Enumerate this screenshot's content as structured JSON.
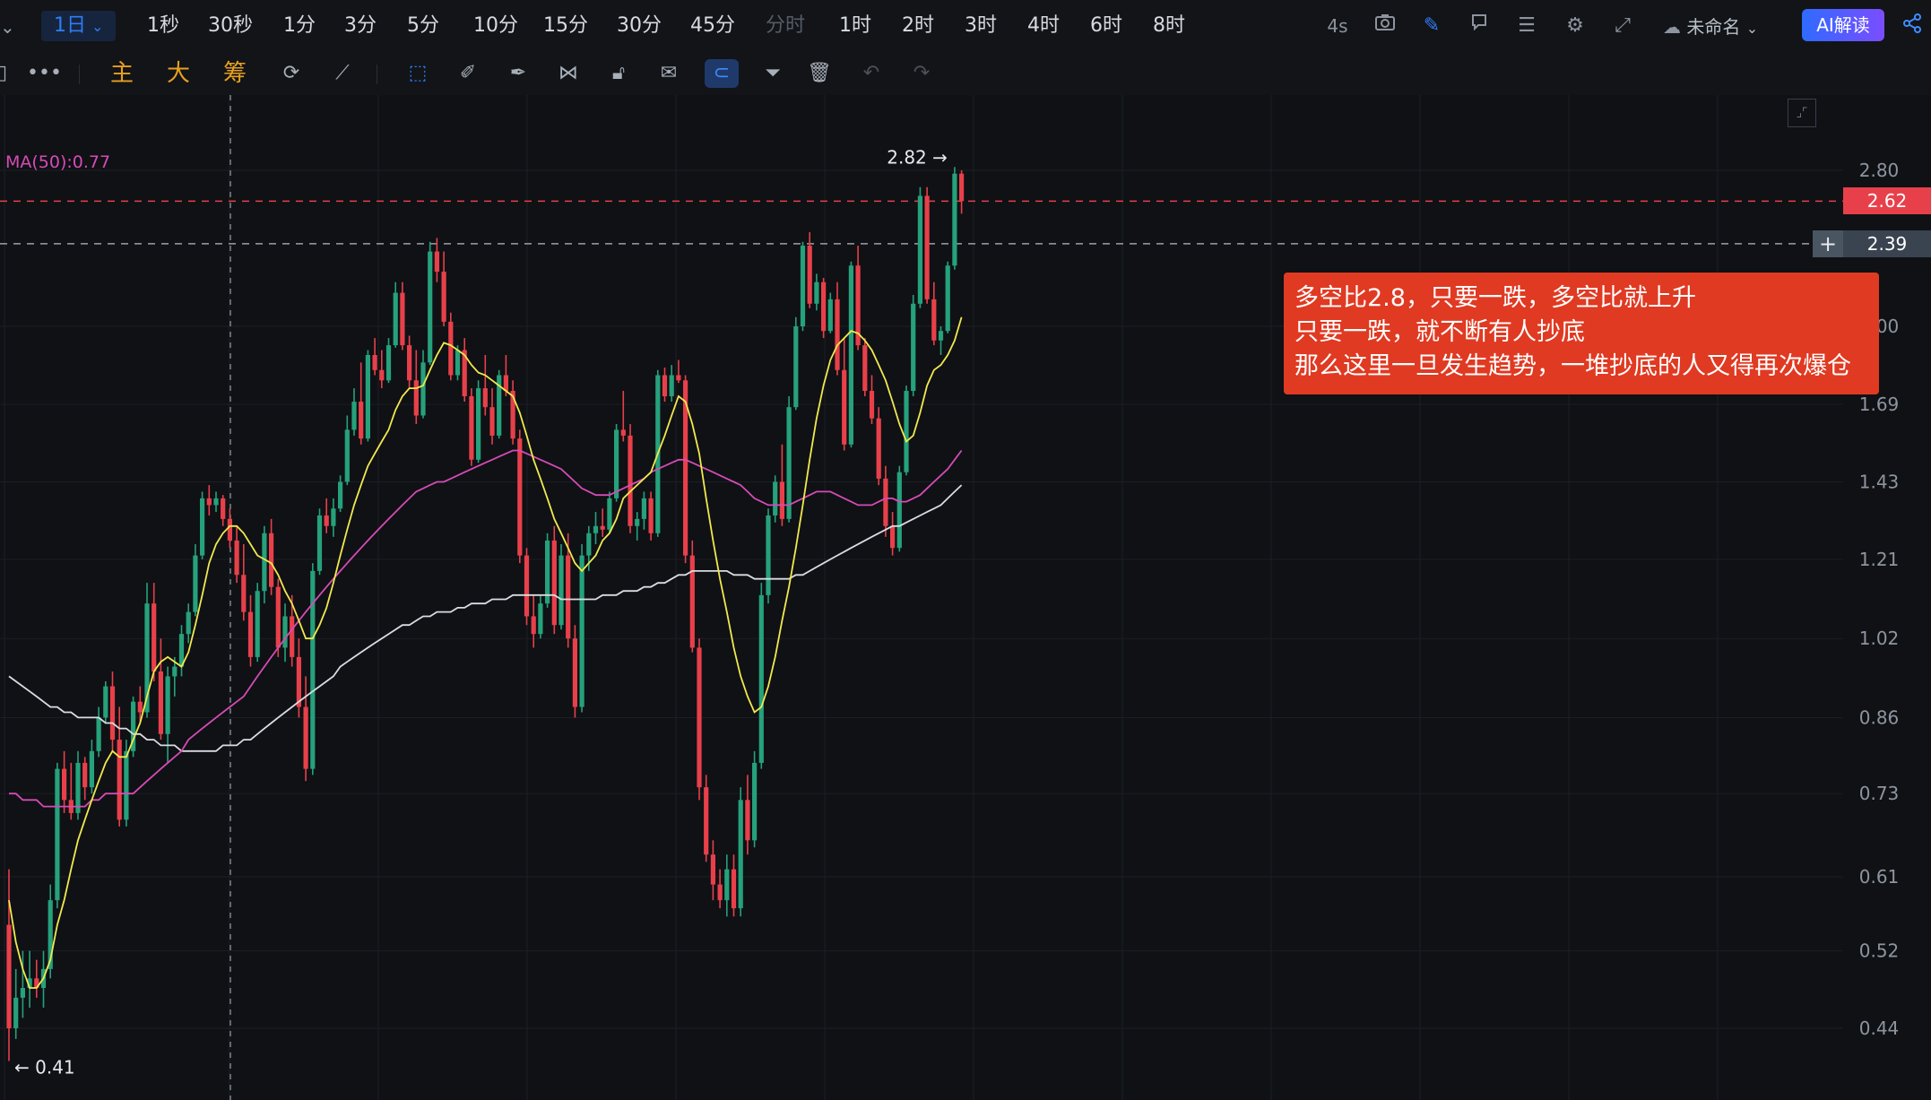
{
  "toolbar": {
    "timeframes": [
      {
        "label": "1日",
        "state": "active"
      },
      {
        "label": "1秒"
      },
      {
        "label": "30秒"
      },
      {
        "label": "1分"
      },
      {
        "label": "3分"
      },
      {
        "label": "5分"
      },
      {
        "label": "10分"
      },
      {
        "label": "15分"
      },
      {
        "label": "30分"
      },
      {
        "label": "45分"
      },
      {
        "label": "分时",
        "state": "disabled"
      },
      {
        "label": "1时"
      },
      {
        "label": "2时"
      },
      {
        "label": "3时"
      },
      {
        "label": "4时"
      },
      {
        "label": "6时"
      },
      {
        "label": "8时"
      }
    ],
    "refresh": "4s",
    "workspace": "未命名",
    "ai_button": "AI解读",
    "drawing_labels": [
      "主",
      "大",
      "筹"
    ],
    "icons": [
      "more-icon",
      "main-indicator",
      "large-order",
      "chips",
      "replace-icon",
      "line-tool-icon",
      "select-icon",
      "ruler-icon",
      "brush-icon",
      "pattern-icon",
      "unlock-icon",
      "note-icon",
      "magnet-icon",
      "filter-icon",
      "trash-icon",
      "undo-icon",
      "redo-icon"
    ]
  },
  "colors": {
    "up": "#26a17b",
    "down": "#e8404a",
    "ma_fast": "#f2e94e",
    "ma_50": "#d64bb5",
    "ma_long": "#d9dde3",
    "accent": "#2f7cf6",
    "callout_bg": "#e03a22"
  },
  "indicator_label": "MA(50):0.77",
  "annotation": {
    "lines": [
      "多空比2.8，只要一跌，多空比就上升",
      "只要一跌，就不断有人抄底",
      "那么这里一旦发生趋势，一堆抄底的人又得再次爆仓"
    ]
  },
  "chart_data": {
    "type": "candlestick",
    "scale": "log",
    "y_ticks": [
      2.8,
      2.0,
      1.69,
      1.43,
      1.21,
      1.02,
      0.86,
      0.73,
      0.61,
      0.52,
      0.44
    ],
    "last_price": 2.62,
    "crosshair_price": 2.39,
    "high_label": "2.82",
    "low_label": "0.41",
    "ohlc": [
      [
        0.55,
        0.62,
        0.41,
        0.44
      ],
      [
        0.44,
        0.5,
        0.43,
        0.47
      ],
      [
        0.47,
        0.52,
        0.45,
        0.48
      ],
      [
        0.48,
        0.52,
        0.46,
        0.49
      ],
      [
        0.49,
        0.51,
        0.47,
        0.48
      ],
      [
        0.48,
        0.52,
        0.46,
        0.5
      ],
      [
        0.5,
        0.6,
        0.49,
        0.58
      ],
      [
        0.58,
        0.78,
        0.57,
        0.77
      ],
      [
        0.77,
        0.8,
        0.7,
        0.72
      ],
      [
        0.72,
        0.78,
        0.69,
        0.7
      ],
      [
        0.7,
        0.8,
        0.69,
        0.78
      ],
      [
        0.78,
        0.79,
        0.72,
        0.74
      ],
      [
        0.74,
        0.82,
        0.73,
        0.8
      ],
      [
        0.8,
        0.88,
        0.79,
        0.86
      ],
      [
        0.86,
        0.93,
        0.85,
        0.92
      ],
      [
        0.92,
        0.95,
        0.8,
        0.82
      ],
      [
        0.82,
        0.88,
        0.68,
        0.69
      ],
      [
        0.69,
        0.82,
        0.68,
        0.8
      ],
      [
        0.8,
        0.9,
        0.79,
        0.89
      ],
      [
        0.89,
        0.92,
        0.85,
        0.87
      ],
      [
        0.87,
        1.15,
        0.86,
        1.1
      ],
      [
        1.1,
        1.15,
        0.93,
        0.95
      ],
      [
        0.95,
        1.02,
        0.82,
        0.83
      ],
      [
        0.83,
        0.96,
        0.78,
        0.94
      ],
      [
        0.94,
        0.98,
        0.9,
        0.96
      ],
      [
        0.96,
        1.05,
        0.94,
        1.03
      ],
      [
        1.03,
        1.1,
        1.01,
        1.08
      ],
      [
        1.08,
        1.25,
        1.07,
        1.22
      ],
      [
        1.22,
        1.4,
        1.21,
        1.38
      ],
      [
        1.38,
        1.42,
        1.33,
        1.36
      ],
      [
        1.36,
        1.4,
        1.34,
        1.38
      ],
      [
        1.38,
        1.39,
        1.3,
        1.32
      ],
      [
        1.32,
        1.35,
        1.24,
        1.26
      ],
      [
        1.26,
        1.3,
        1.15,
        1.17
      ],
      [
        1.17,
        1.25,
        1.06,
        1.08
      ],
      [
        1.08,
        1.12,
        0.96,
        0.98
      ],
      [
        0.98,
        1.15,
        0.97,
        1.13
      ],
      [
        1.13,
        1.3,
        1.1,
        1.28
      ],
      [
        1.28,
        1.32,
        1.12,
        1.14
      ],
      [
        1.14,
        1.16,
        0.98,
        1.0
      ],
      [
        1.0,
        1.1,
        0.97,
        1.07
      ],
      [
        1.07,
        1.12,
        0.96,
        0.98
      ],
      [
        0.98,
        1.02,
        0.86,
        0.88
      ],
      [
        0.88,
        0.94,
        0.75,
        0.77
      ],
      [
        0.77,
        1.2,
        0.76,
        1.18
      ],
      [
        1.18,
        1.35,
        1.17,
        1.33
      ],
      [
        1.33,
        1.38,
        1.28,
        1.3
      ],
      [
        1.3,
        1.38,
        1.27,
        1.35
      ],
      [
        1.35,
        1.45,
        1.34,
        1.43
      ],
      [
        1.43,
        1.65,
        1.42,
        1.6
      ],
      [
        1.6,
        1.75,
        1.58,
        1.7
      ],
      [
        1.7,
        1.85,
        1.55,
        1.57
      ],
      [
        1.57,
        1.9,
        1.56,
        1.88
      ],
      [
        1.88,
        1.95,
        1.8,
        1.82
      ],
      [
        1.82,
        1.9,
        1.75,
        1.78
      ],
      [
        1.78,
        1.95,
        1.77,
        1.92
      ],
      [
        1.92,
        2.2,
        1.91,
        2.15
      ],
      [
        2.15,
        2.2,
        1.9,
        1.92
      ],
      [
        1.92,
        1.96,
        1.75,
        1.78
      ],
      [
        1.78,
        1.9,
        1.62,
        1.65
      ],
      [
        1.65,
        1.9,
        1.64,
        1.85
      ],
      [
        1.85,
        2.4,
        1.84,
        2.35
      ],
      [
        2.35,
        2.42,
        2.2,
        2.25
      ],
      [
        2.25,
        2.35,
        2.0,
        2.02
      ],
      [
        2.02,
        2.06,
        1.78,
        1.8
      ],
      [
        1.8,
        1.92,
        1.78,
        1.9
      ],
      [
        1.9,
        1.95,
        1.7,
        1.72
      ],
      [
        1.72,
        1.75,
        1.48,
        1.5
      ],
      [
        1.5,
        1.78,
        1.49,
        1.75
      ],
      [
        1.75,
        1.88,
        1.65,
        1.68
      ],
      [
        1.68,
        1.75,
        1.55,
        1.58
      ],
      [
        1.58,
        1.82,
        1.57,
        1.8
      ],
      [
        1.8,
        1.88,
        1.72,
        1.74
      ],
      [
        1.74,
        1.78,
        1.55,
        1.57
      ],
      [
        1.57,
        1.6,
        1.2,
        1.22
      ],
      [
        1.22,
        1.24,
        1.05,
        1.07
      ],
      [
        1.07,
        1.12,
        1.0,
        1.03
      ],
      [
        1.03,
        1.12,
        1.02,
        1.1
      ],
      [
        1.1,
        1.28,
        1.09,
        1.26
      ],
      [
        1.26,
        1.3,
        1.03,
        1.05
      ],
      [
        1.05,
        1.25,
        1.04,
        1.22
      ],
      [
        1.22,
        1.28,
        1.0,
        1.02
      ],
      [
        1.02,
        1.05,
        0.86,
        0.88
      ],
      [
        0.88,
        1.25,
        0.87,
        1.22
      ],
      [
        1.22,
        1.3,
        1.18,
        1.28
      ],
      [
        1.28,
        1.34,
        1.25,
        1.3
      ],
      [
        1.3,
        1.35,
        1.27,
        1.29
      ],
      [
        1.29,
        1.4,
        1.28,
        1.38
      ],
      [
        1.38,
        1.62,
        1.37,
        1.6
      ],
      [
        1.6,
        1.74,
        1.56,
        1.58
      ],
      [
        1.58,
        1.62,
        1.28,
        1.3
      ],
      [
        1.3,
        1.34,
        1.26,
        1.32
      ],
      [
        1.32,
        1.4,
        1.29,
        1.38
      ],
      [
        1.38,
        1.4,
        1.26,
        1.28
      ],
      [
        1.28,
        1.82,
        1.27,
        1.8
      ],
      [
        1.8,
        1.83,
        1.7,
        1.72
      ],
      [
        1.72,
        1.84,
        1.7,
        1.8
      ],
      [
        1.8,
        1.86,
        1.77,
        1.78
      ],
      [
        1.78,
        1.8,
        1.2,
        1.22
      ],
      [
        1.22,
        1.26,
        0.99,
        1.0
      ],
      [
        1.0,
        1.02,
        0.72,
        0.74
      ],
      [
        0.74,
        0.76,
        0.63,
        0.64
      ],
      [
        0.64,
        0.66,
        0.58,
        0.6
      ],
      [
        0.6,
        0.62,
        0.57,
        0.58
      ],
      [
        0.58,
        0.64,
        0.56,
        0.62
      ],
      [
        0.62,
        0.64,
        0.56,
        0.57
      ],
      [
        0.57,
        0.74,
        0.56,
        0.72
      ],
      [
        0.72,
        0.76,
        0.64,
        0.66
      ],
      [
        0.66,
        0.8,
        0.65,
        0.78
      ],
      [
        0.78,
        1.15,
        0.77,
        1.12
      ],
      [
        1.12,
        1.35,
        1.1,
        1.33
      ],
      [
        1.33,
        1.45,
        1.31,
        1.43
      ],
      [
        1.43,
        1.55,
        1.3,
        1.32
      ],
      [
        1.32,
        1.72,
        1.31,
        1.68
      ],
      [
        1.68,
        2.04,
        1.67,
        2.0
      ],
      [
        2.0,
        2.4,
        1.98,
        2.38
      ],
      [
        2.38,
        2.45,
        2.08,
        2.1
      ],
      [
        2.1,
        2.24,
        2.07,
        2.2
      ],
      [
        2.2,
        2.22,
        1.95,
        1.98
      ],
      [
        1.98,
        2.15,
        1.97,
        2.12
      ],
      [
        2.12,
        2.2,
        1.8,
        1.82
      ],
      [
        1.82,
        1.95,
        1.53,
        1.55
      ],
      [
        1.55,
        2.3,
        1.54,
        2.28
      ],
      [
        2.28,
        2.38,
        1.9,
        1.92
      ],
      [
        1.92,
        1.95,
        1.72,
        1.74
      ],
      [
        1.74,
        1.8,
        1.62,
        1.64
      ],
      [
        1.64,
        1.68,
        1.42,
        1.44
      ],
      [
        1.44,
        1.48,
        1.27,
        1.3
      ],
      [
        1.3,
        1.34,
        1.22,
        1.24
      ],
      [
        1.24,
        1.48,
        1.23,
        1.46
      ],
      [
        1.46,
        1.76,
        1.45,
        1.74
      ],
      [
        1.74,
        2.14,
        1.72,
        2.1
      ],
      [
        2.1,
        2.7,
        2.08,
        2.65
      ],
      [
        2.65,
        2.7,
        2.1,
        2.12
      ],
      [
        2.12,
        2.2,
        1.92,
        1.94
      ],
      [
        1.94,
        2.0,
        1.88,
        1.98
      ],
      [
        1.98,
        2.3,
        1.97,
        2.28
      ],
      [
        2.28,
        2.82,
        2.26,
        2.78
      ],
      [
        2.78,
        2.8,
        2.55,
        2.62
      ]
    ],
    "ma_fast": [
      0.58,
      0.53,
      0.5,
      0.48,
      0.48,
      0.49,
      0.51,
      0.55,
      0.58,
      0.62,
      0.66,
      0.69,
      0.72,
      0.75,
      0.78,
      0.8,
      0.79,
      0.79,
      0.82,
      0.85,
      0.9,
      0.95,
      0.97,
      0.98,
      0.97,
      0.96,
      0.99,
      1.05,
      1.12,
      1.2,
      1.25,
      1.28,
      1.3,
      1.3,
      1.28,
      1.25,
      1.22,
      1.21,
      1.2,
      1.17,
      1.13,
      1.1,
      1.06,
      1.02,
      1.02,
      1.05,
      1.09,
      1.15,
      1.22,
      1.29,
      1.36,
      1.42,
      1.48,
      1.52,
      1.56,
      1.6,
      1.67,
      1.72,
      1.75,
      1.75,
      1.76,
      1.82,
      1.88,
      1.93,
      1.92,
      1.9,
      1.88,
      1.84,
      1.81,
      1.8,
      1.78,
      1.76,
      1.74,
      1.72,
      1.66,
      1.58,
      1.5,
      1.44,
      1.38,
      1.32,
      1.28,
      1.24,
      1.2,
      1.18,
      1.2,
      1.22,
      1.26,
      1.28,
      1.32,
      1.38,
      1.4,
      1.42,
      1.44,
      1.46,
      1.52,
      1.58,
      1.65,
      1.72,
      1.7,
      1.62,
      1.52,
      1.38,
      1.26,
      1.16,
      1.08,
      1.0,
      0.94,
      0.9,
      0.87,
      0.88,
      0.92,
      0.98,
      1.06,
      1.14,
      1.24,
      1.36,
      1.5,
      1.64,
      1.76,
      1.86,
      1.92,
      1.95,
      1.98,
      1.97,
      1.94,
      1.9,
      1.84,
      1.78,
      1.7,
      1.62,
      1.56,
      1.58,
      1.66,
      1.76,
      1.82,
      1.84,
      1.88,
      1.94,
      2.04
    ],
    "ma_50": [
      0.73,
      0.73,
      0.72,
      0.72,
      0.72,
      0.71,
      0.71,
      0.71,
      0.71,
      0.71,
      0.71,
      0.71,
      0.72,
      0.72,
      0.73,
      0.73,
      0.73,
      0.73,
      0.73,
      0.74,
      0.75,
      0.76,
      0.77,
      0.78,
      0.79,
      0.8,
      0.82,
      0.83,
      0.84,
      0.85,
      0.86,
      0.87,
      0.88,
      0.89,
      0.9,
      0.92,
      0.94,
      0.96,
      0.98,
      1.0,
      1.02,
      1.04,
      1.06,
      1.08,
      1.1,
      1.12,
      1.14,
      1.16,
      1.18,
      1.2,
      1.22,
      1.24,
      1.26,
      1.28,
      1.3,
      1.32,
      1.34,
      1.36,
      1.38,
      1.4,
      1.41,
      1.42,
      1.43,
      1.43,
      1.44,
      1.45,
      1.46,
      1.47,
      1.48,
      1.49,
      1.5,
      1.51,
      1.52,
      1.53,
      1.53,
      1.52,
      1.51,
      1.5,
      1.49,
      1.48,
      1.47,
      1.45,
      1.43,
      1.41,
      1.4,
      1.39,
      1.39,
      1.39,
      1.4,
      1.41,
      1.42,
      1.43,
      1.44,
      1.46,
      1.47,
      1.48,
      1.49,
      1.5,
      1.5,
      1.49,
      1.48,
      1.47,
      1.46,
      1.45,
      1.44,
      1.43,
      1.42,
      1.4,
      1.38,
      1.37,
      1.36,
      1.36,
      1.36,
      1.36,
      1.37,
      1.38,
      1.39,
      1.4,
      1.4,
      1.4,
      1.39,
      1.38,
      1.37,
      1.36,
      1.36,
      1.36,
      1.37,
      1.38,
      1.38,
      1.37,
      1.37,
      1.38,
      1.39,
      1.41,
      1.43,
      1.45,
      1.47,
      1.5,
      1.53
    ],
    "ma_long": [
      0.94,
      0.93,
      0.92,
      0.91,
      0.9,
      0.89,
      0.88,
      0.88,
      0.87,
      0.87,
      0.86,
      0.86,
      0.86,
      0.86,
      0.85,
      0.85,
      0.84,
      0.84,
      0.83,
      0.83,
      0.82,
      0.82,
      0.81,
      0.81,
      0.81,
      0.8,
      0.8,
      0.8,
      0.8,
      0.8,
      0.8,
      0.81,
      0.81,
      0.81,
      0.82,
      0.82,
      0.83,
      0.84,
      0.85,
      0.86,
      0.87,
      0.88,
      0.89,
      0.9,
      0.91,
      0.92,
      0.93,
      0.94,
      0.96,
      0.97,
      0.98,
      0.99,
      1.0,
      1.01,
      1.02,
      1.03,
      1.04,
      1.05,
      1.05,
      1.06,
      1.07,
      1.07,
      1.08,
      1.08,
      1.08,
      1.09,
      1.09,
      1.1,
      1.1,
      1.1,
      1.11,
      1.11,
      1.11,
      1.12,
      1.12,
      1.12,
      1.12,
      1.12,
      1.12,
      1.12,
      1.11,
      1.11,
      1.11,
      1.11,
      1.11,
      1.11,
      1.12,
      1.12,
      1.12,
      1.13,
      1.13,
      1.13,
      1.14,
      1.14,
      1.15,
      1.15,
      1.16,
      1.17,
      1.17,
      1.18,
      1.18,
      1.18,
      1.18,
      1.18,
      1.18,
      1.17,
      1.17,
      1.17,
      1.16,
      1.16,
      1.16,
      1.16,
      1.16,
      1.16,
      1.17,
      1.17,
      1.18,
      1.19,
      1.2,
      1.21,
      1.22,
      1.23,
      1.24,
      1.25,
      1.26,
      1.27,
      1.28,
      1.29,
      1.3,
      1.3,
      1.31,
      1.32,
      1.33,
      1.34,
      1.35,
      1.36,
      1.38,
      1.4,
      1.42
    ]
  }
}
